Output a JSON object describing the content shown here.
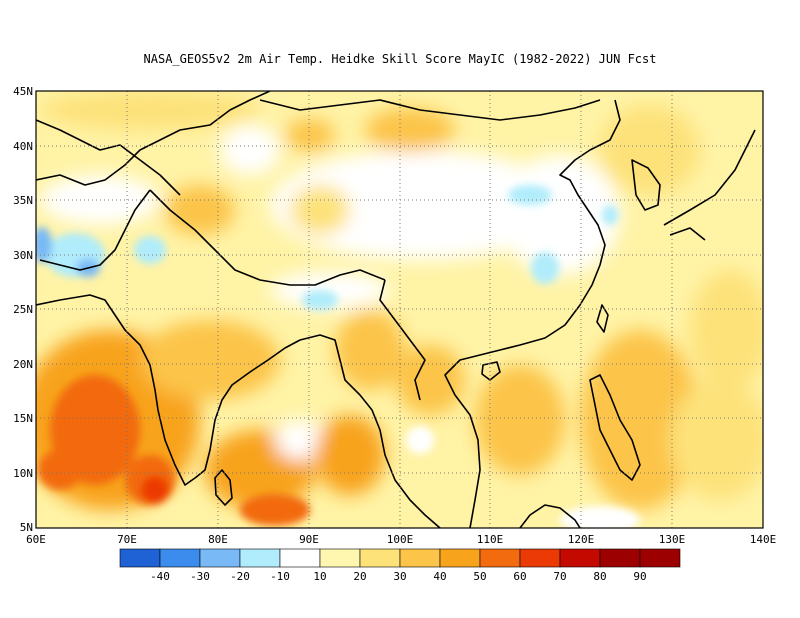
{
  "title": "NASA_GEOS5v2  2m Air Temp. Heidke Skill Score MayIC (1982-2022) JUN Fcst",
  "map": {
    "lon_range": [
      60,
      140
    ],
    "lat_range": [
      5,
      45
    ],
    "lat_ticks": [
      "45N",
      "40N",
      "35N",
      "30N",
      "25N",
      "20N",
      "15N",
      "10N",
      "5N"
    ],
    "lon_ticks": [
      "60E",
      "70E",
      "80E",
      "90E",
      "100E",
      "110E",
      "120E",
      "130E",
      "140E"
    ],
    "grid": true,
    "region": "South and East Asia"
  },
  "colorbar": {
    "labels": [
      "-40",
      "-30",
      "-20",
      "-10",
      "10",
      "20",
      "30",
      "40",
      "50",
      "60",
      "70",
      "80",
      "90"
    ],
    "colors": [
      "#1e62d6",
      "#3c8cee",
      "#78b9f6",
      "#b0ecfb",
      "#ffffff",
      "#fff7b0",
      "#fde27a",
      "#fcc449",
      "#f8a31c",
      "#f26b0f",
      "#ec3a06",
      "#c40a00",
      "#9c0000"
    ]
  }
}
